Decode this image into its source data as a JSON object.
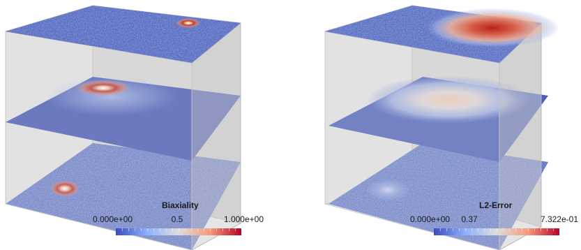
{
  "left": {
    "colorbar": {
      "title": "Biaxiality",
      "min_label": "0.000e+00",
      "mid_label": "0.5",
      "max_label": "1.000e+00",
      "min": 0.0,
      "mid": 0.5,
      "max": 1.0,
      "colormap": [
        "#3b4cc0",
        "#8db0fe",
        "#dddddd",
        "#f49a7b",
        "#b40426"
      ]
    }
  },
  "right": {
    "colorbar": {
      "title": "L2-Error",
      "min_label": "0.000e+00",
      "mid_label": "0.37",
      "max_label": "7.322e-01",
      "min": 0.0,
      "mid": 0.37,
      "max": 0.7322,
      "colormap": [
        "#3b4cc0",
        "#8db0fe",
        "#dddddd",
        "#f49a7b",
        "#b40426"
      ]
    }
  },
  "colors": {
    "slice_base": "#4a5db8",
    "box_face": "#dcdcdc",
    "box_edge": "#b4b4b4"
  }
}
